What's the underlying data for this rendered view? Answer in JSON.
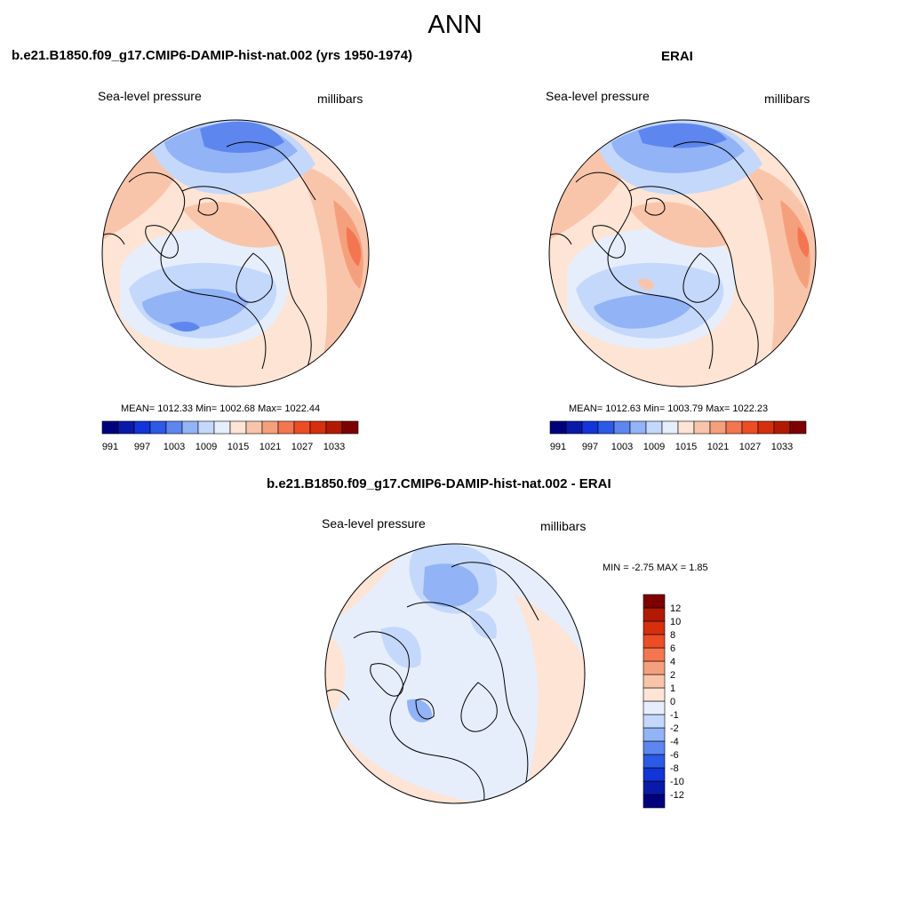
{
  "title": "ANN",
  "panels": [
    {
      "id": "model",
      "title": "b.e21.B1850.f09_g17.CMIP6-DAMIP-hist-nat.002 (yrs 1950-1974)",
      "left_label": "Sea-level pressure",
      "right_label": "millibars",
      "stats": "MEAN= 1012.33  Min= 1002.68  Max= 1022.44"
    },
    {
      "id": "obs",
      "title": "ERAI",
      "left_label": "Sea-level pressure",
      "right_label": "millibars",
      "stats": "MEAN= 1012.63  Min= 1003.79  Max= 1022.23"
    },
    {
      "id": "diff",
      "title": "b.e21.B1850.f09_g17.CMIP6-DAMIP-hist-nat.002 - ERAI",
      "left_label": "Sea-level pressure",
      "right_label": "millibars",
      "stats": "MIN =  -2.75 MAX =   1.85"
    }
  ],
  "colorbar_abs": {
    "colors": [
      "#00007f",
      "#0a1aa8",
      "#1234d8",
      "#2c5ae6",
      "#5d86ef",
      "#92b3f6",
      "#c4d8fb",
      "#e6eefc",
      "#fde4d4",
      "#f9c5aa",
      "#f5a07c",
      "#f37651",
      "#ed4d24",
      "#d52f0c",
      "#b11a00",
      "#7f0000"
    ],
    "tick_labels": [
      "991",
      "997",
      "1003",
      "1009",
      "1015",
      "1021",
      "1027",
      "1033"
    ]
  },
  "colorbar_diff": {
    "colors": [
      "#00007f",
      "#0a1aa8",
      "#1234d8",
      "#2c5ae6",
      "#5d86ef",
      "#92b3f6",
      "#c4d8fb",
      "#e6eefc",
      "#fde4d4",
      "#f9c5aa",
      "#f5a07c",
      "#f37651",
      "#ed4d24",
      "#d52f0c",
      "#b11a00",
      "#7f0000"
    ],
    "tick_labels": [
      "-12",
      "-10",
      "-8",
      "-6",
      "-4",
      "-2",
      "-1",
      "0",
      "1",
      "2",
      "4",
      "6",
      "8",
      "10",
      "12"
    ]
  }
}
